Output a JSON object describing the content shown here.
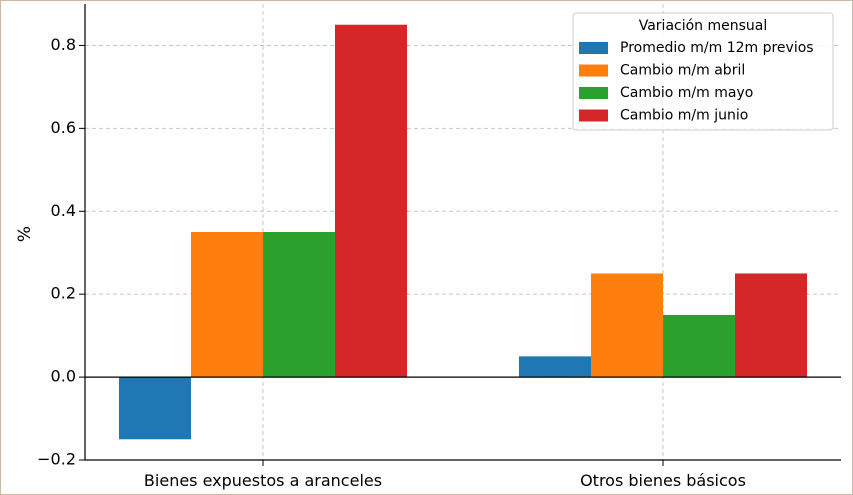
{
  "chart_data": {
    "type": "bar",
    "categories": [
      "Bienes expuestos a aranceles",
      "Otros bienes básicos"
    ],
    "series": [
      {
        "name": "Promedio m/m 12m previos",
        "color": "#1f77b4",
        "values": [
          -0.15,
          0.05
        ]
      },
      {
        "name": "Cambio m/m abril",
        "color": "#ff7f0e",
        "values": [
          0.35,
          0.25
        ]
      },
      {
        "name": "Cambio m/m mayo",
        "color": "#2ca02c",
        "values": [
          0.35,
          0.15
        ]
      },
      {
        "name": "Cambio m/m junio",
        "color": "#d62728",
        "values": [
          0.85,
          0.25
        ]
      }
    ],
    "title": "",
    "xlabel": "",
    "ylabel": "%",
    "ylim": [
      -0.2,
      0.9
    ],
    "yticks": [
      -0.2,
      0.0,
      0.2,
      0.4,
      0.6,
      0.8
    ],
    "ytick_labels": [
      "−0.2",
      "0.0",
      "0.2",
      "0.4",
      "0.6",
      "0.8"
    ],
    "grid": true,
    "legend": {
      "title": "Variación mensual",
      "position": "top-right"
    }
  }
}
